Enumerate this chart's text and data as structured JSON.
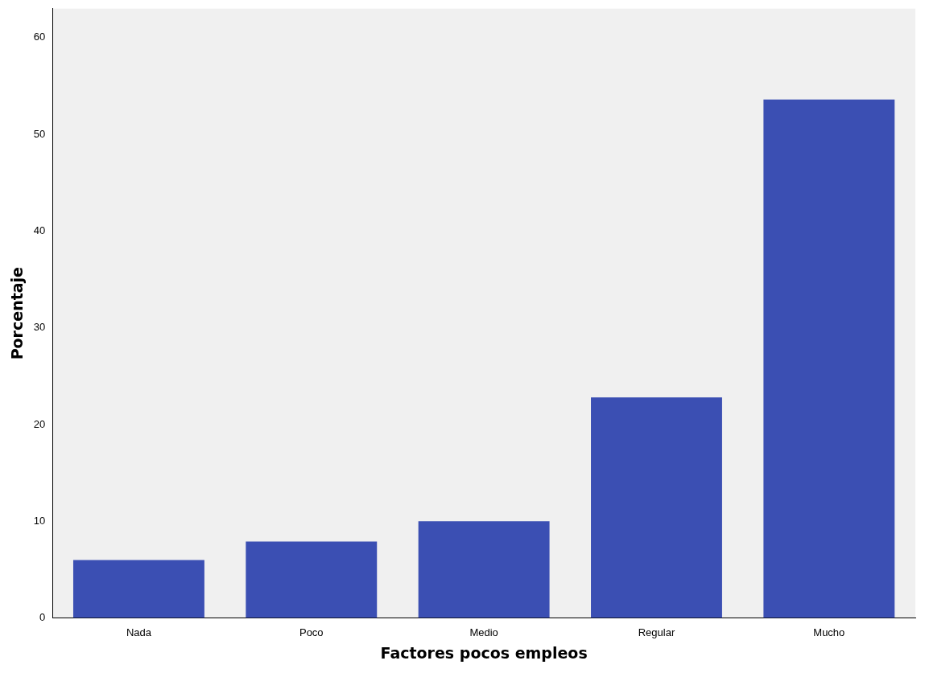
{
  "chart_data": {
    "type": "bar",
    "xlabel": "Factores pocos empleos",
    "ylabel": "Porcentaje",
    "categories": [
      "Nada",
      "Poco",
      "Medio",
      "Regular",
      "Mucho"
    ],
    "values": [
      6.0,
      7.9,
      10.0,
      22.8,
      53.6
    ],
    "color": "#3b4fb3",
    "ylim": [
      0,
      63
    ],
    "yticks": [
      0,
      10,
      20,
      30,
      40,
      50,
      60
    ],
    "grid": false,
    "legend": false
  }
}
